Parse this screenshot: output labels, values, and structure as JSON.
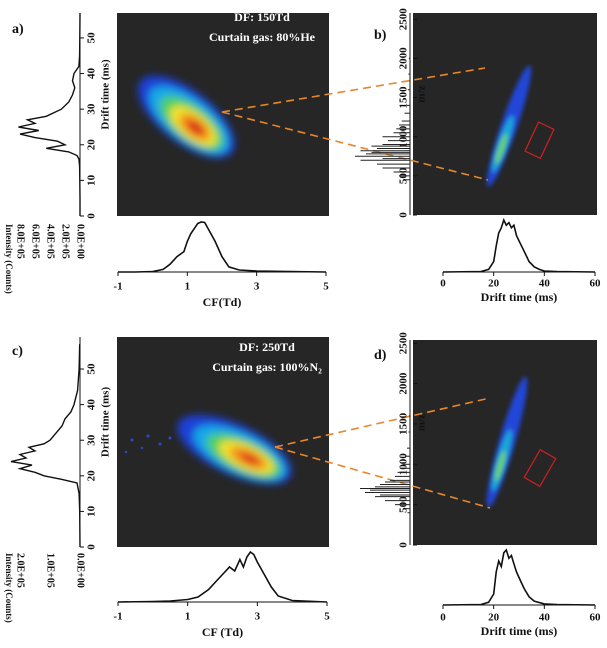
{
  "chart_data": [
    {
      "type": "mobility",
      "label": "a)",
      "annotation": [
        "DF: 150Td",
        "Curtain gas: 80%He"
      ],
      "ylabel": "Drift time (ms)",
      "ylim": [
        0,
        57
      ],
      "yticks": [
        0,
        10,
        20,
        30,
        40,
        50
      ],
      "side": {
        "xlabel": "Intensity (Counts)",
        "xlim": [
          0,
          1000000
        ],
        "xticks": [
          {
            "value": 800000,
            "label": "8.0E+05"
          },
          {
            "value": 600000,
            "label": "6.0E+05"
          },
          {
            "value": 400000,
            "label": "4.0E+05"
          },
          {
            "value": 200000,
            "label": "2.0E+05"
          },
          {
            "value": 0,
            "label": "0.0E+00"
          }
        ],
        "y": [
          0,
          5,
          10,
          14,
          16,
          17,
          18,
          19,
          20,
          21,
          22,
          23,
          24,
          25,
          26,
          27,
          28,
          29,
          30,
          32,
          34,
          36,
          38,
          40,
          42,
          45,
          50,
          57
        ],
        "values": [
          0,
          0,
          2000,
          5000,
          15000,
          40000,
          150000,
          450000,
          200000,
          300000,
          600000,
          800000,
          550000,
          820000,
          600000,
          700000,
          450000,
          350000,
          250000,
          150000,
          100000,
          70000,
          100000,
          80000,
          15000,
          5000,
          2000,
          0
        ]
      },
      "bottom": {
        "xlabel": "CF(Td)",
        "xlim": [
          -1,
          5
        ],
        "xticks": [
          -1,
          1,
          3,
          5
        ],
        "x": [
          -1,
          -0.5,
          0,
          0.3,
          0.5,
          0.7,
          0.9,
          1.0,
          1.1,
          1.2,
          1.3,
          1.4,
          1.5,
          1.6,
          1.8,
          2.0,
          2.2,
          2.5,
          3,
          4,
          5
        ],
        "values": [
          0,
          0,
          0.01,
          0.05,
          0.15,
          0.3,
          0.4,
          0.6,
          0.75,
          0.85,
          0.95,
          0.98,
          0.97,
          0.85,
          0.6,
          0.3,
          0.1,
          0.04,
          0.02,
          0.01,
          0
        ]
      }
    },
    {
      "type": "mass",
      "label": "b)",
      "ylabel": "m/z",
      "ylim": [
        0,
        2580
      ],
      "yticks": [
        0,
        500,
        1000,
        1500,
        2000,
        2500
      ],
      "side": {
        "y": [
          450,
          500,
          550,
          600,
          650,
          700,
          720,
          750,
          780,
          800,
          820,
          850,
          880,
          900,
          950,
          1000,
          1050,
          1100,
          1150,
          1200,
          1300,
          1400,
          1600,
          1800,
          2000
        ],
        "values": [
          0.1,
          0.2,
          0.3,
          0.5,
          0.6,
          0.9,
          0.5,
          1.0,
          0.8,
          0.7,
          0.9,
          0.6,
          0.7,
          0.5,
          0.4,
          0.5,
          0.3,
          0.25,
          0.2,
          0.15,
          0.1,
          0.06,
          0.04,
          0.03,
          0.02
        ]
      },
      "bottom": {
        "xlabel": "Drift time (ms)",
        "xlim": [
          0,
          60
        ],
        "xticks": [
          0,
          20,
          40,
          60
        ],
        "x": [
          0,
          15,
          18,
          20,
          21,
          22,
          23,
          24,
          25,
          26,
          27,
          28,
          29,
          30,
          32,
          34,
          36,
          38,
          40,
          45,
          60
        ],
        "values": [
          0,
          0.01,
          0.05,
          0.2,
          0.5,
          0.75,
          0.85,
          1.0,
          0.9,
          0.95,
          0.85,
          0.9,
          0.7,
          0.6,
          0.4,
          0.2,
          0.1,
          0.05,
          0.02,
          0.01,
          0
        ]
      }
    },
    {
      "type": "mobility",
      "label": "c)",
      "annotation": [
        "DF: 250Td",
        "Curtain gas: 100%N₂"
      ],
      "ylabel": "Drift time (ms)",
      "ylim": [
        0,
        59
      ],
      "yticks": [
        0,
        10,
        20,
        30,
        40,
        50
      ],
      "side": {
        "xlabel": "Intensity (Counts)",
        "xlim": [
          0,
          250000
        ],
        "xticks": [
          {
            "value": 200000,
            "label": "2.0E+05"
          },
          {
            "value": 100000,
            "label": "1.0E+05"
          },
          {
            "value": 0,
            "label": "0.0E+00"
          }
        ],
        "y": [
          0,
          10,
          15,
          18,
          19,
          20,
          21,
          22,
          23,
          24,
          25,
          26,
          27,
          28,
          29,
          30,
          32,
          34,
          36,
          38,
          40,
          44,
          50,
          57
        ],
        "values": [
          0,
          1000,
          3000,
          10000,
          60000,
          120000,
          150000,
          200000,
          160000,
          230000,
          180000,
          200000,
          150000,
          170000,
          120000,
          100000,
          80000,
          60000,
          50000,
          30000,
          20000,
          8000,
          3000,
          1000
        ]
      },
      "bottom": {
        "xlabel": "CF (Td)",
        "xlim": [
          -1,
          5
        ],
        "xticks": [
          -1,
          1,
          3,
          5
        ],
        "x": [
          -1,
          0,
          0.5,
          1,
          1.3,
          1.6,
          1.8,
          2.0,
          2.2,
          2.35,
          2.5,
          2.6,
          2.7,
          2.8,
          2.9,
          3.0,
          3.2,
          3.4,
          3.6,
          4,
          5
        ],
        "values": [
          0,
          0.01,
          0.02,
          0.05,
          0.1,
          0.25,
          0.4,
          0.55,
          0.7,
          0.62,
          0.85,
          0.7,
          0.9,
          1.0,
          0.95,
          0.8,
          0.55,
          0.3,
          0.12,
          0.03,
          0
        ]
      }
    },
    {
      "type": "mass",
      "label": "d)",
      "ylabel": "m/z",
      "ylim": [
        0,
        2540
      ],
      "yticks": [
        0,
        500,
        1000,
        1500,
        2000,
        2500
      ],
      "side": {
        "y": [
          400,
          450,
          500,
          550,
          600,
          620,
          650,
          680,
          700,
          720,
          750,
          780,
          800,
          850,
          900,
          950,
          1000,
          1100,
          1200,
          1400,
          1600
        ],
        "values": [
          0.05,
          0.1,
          0.3,
          0.5,
          0.7,
          0.6,
          0.9,
          0.8,
          1.0,
          0.7,
          0.6,
          0.5,
          0.4,
          0.3,
          0.25,
          0.2,
          0.15,
          0.1,
          0.06,
          0.03,
          0.02
        ]
      },
      "bottom": {
        "xlabel": "Drift time (ms)",
        "xlim": [
          0,
          60
        ],
        "xticks": [
          0,
          20,
          40,
          60
        ],
        "x": [
          0,
          15,
          18,
          20,
          21,
          22,
          23,
          24,
          25,
          26,
          27,
          28,
          29,
          30,
          32,
          34,
          36,
          40,
          45,
          60
        ],
        "values": [
          0,
          0.01,
          0.05,
          0.2,
          0.6,
          0.8,
          0.7,
          0.95,
          1.0,
          0.85,
          0.9,
          0.75,
          0.6,
          0.5,
          0.3,
          0.15,
          0.07,
          0.02,
          0.01,
          0
        ]
      }
    }
  ]
}
